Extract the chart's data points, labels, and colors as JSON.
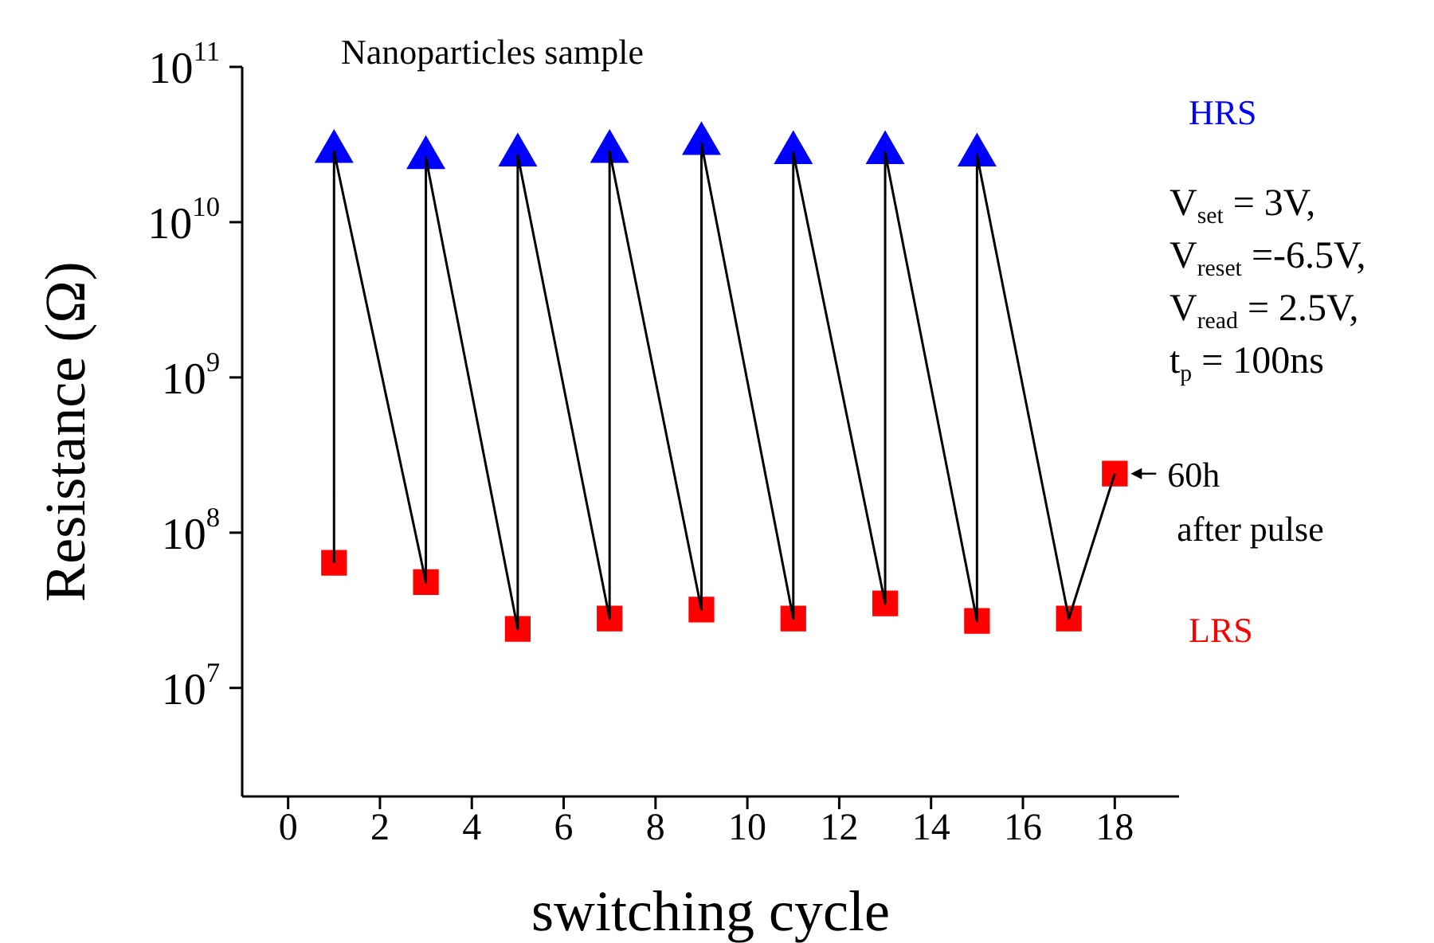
{
  "chart_data": {
    "type": "scatter",
    "title": "Nanoparticles sample",
    "xlabel": "switching cycle",
    "ylabel": "Resistance (Ω)",
    "xlim": [
      -1,
      19.4
    ],
    "xticks": [
      0,
      2,
      4,
      6,
      8,
      10,
      12,
      14,
      16,
      18
    ],
    "ylim": [
      2000000,
      100000000000
    ],
    "log": "y",
    "yticks": [
      {
        "value": 10000000,
        "label": "10$^{7}$"
      },
      {
        "value": 100000000,
        "label": "10$^{8}$"
      },
      {
        "value": 1000000000,
        "label": "10$^{9}$"
      },
      {
        "value": 10000000000,
        "label": "10$^{10}$"
      },
      {
        "value": 100000000000,
        "label": "10$^{11}$"
      }
    ],
    "grid": false,
    "legend": false,
    "series": [
      {
        "type": "line",
        "color": "#000000",
        "marker": "none",
        "line_style": "solid",
        "x": [
          1,
          1,
          3,
          3,
          5,
          5,
          7,
          7,
          9,
          9,
          11,
          11,
          13,
          13,
          15,
          15,
          17,
          18
        ],
        "values": [
          64000000,
          28500000000,
          48000000,
          26000000000,
          24000000,
          27000000000,
          28000000,
          28500000000,
          32000000,
          32000000000,
          28000000,
          28000000000,
          35000000,
          28000000000,
          27000000,
          27000000000,
          28000000,
          240000000
        ]
      },
      {
        "name": "HRS",
        "type": "scatter",
        "color": "#0000ff",
        "marker": "triangle",
        "x": [
          1,
          3,
          5,
          7,
          9,
          11,
          13,
          15
        ],
        "values": [
          28500000000,
          26000000000,
          27000000000,
          28500000000,
          32000000000,
          28000000000,
          28000000000,
          27000000000
        ]
      },
      {
        "name": "LRS",
        "type": "scatter",
        "color": "#ff0000",
        "marker": "square",
        "x": [
          1,
          3,
          5,
          7,
          9,
          11,
          13,
          15,
          17,
          18
        ],
        "values": [
          64000000,
          48000000,
          24000000,
          28000000,
          32000000,
          28000000,
          35000000,
          27000000,
          28000000,
          240000000
        ]
      }
    ],
    "annotations": [
      "V$_{set}$ = 3V,",
      "V$_{reset}$ =-6.5V,",
      "V$_{read}$ = 2.5V,",
      "t$_{p}$ = 100ns",
      {
        "text": "60h\nafter pulse",
        "x": 18,
        "y": 240000000
      }
    ]
  }
}
